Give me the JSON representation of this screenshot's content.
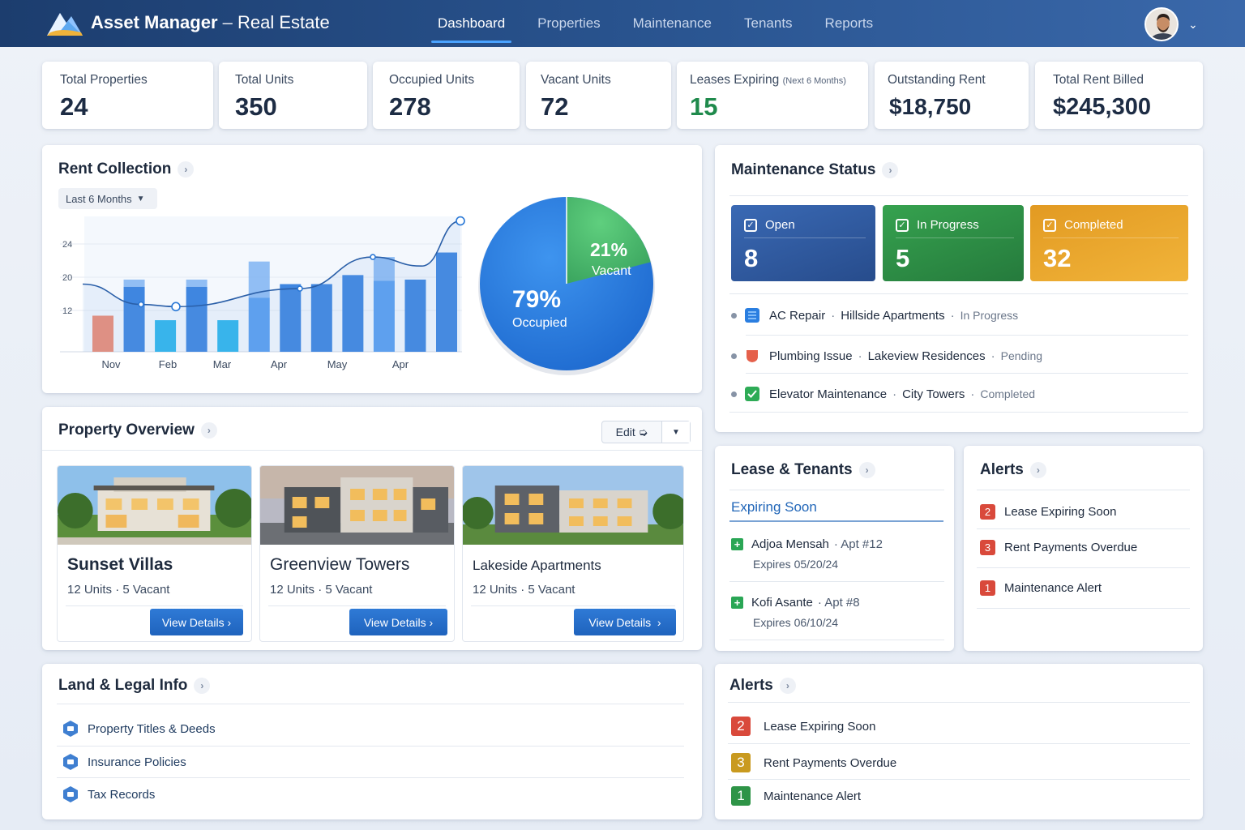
{
  "header": {
    "app_name": "Asset Manager",
    "app_separator": "–",
    "app_section": "Real Estate",
    "nav": [
      {
        "label": "Dashboard",
        "active": true
      },
      {
        "label": "Properties",
        "active": false
      },
      {
        "label": "Maintenance",
        "active": false
      },
      {
        "label": "Tenants",
        "active": false
      },
      {
        "label": "Reports",
        "active": false
      }
    ],
    "avatar_icon": "user-avatar",
    "caret_icon": "chevron-down-icon"
  },
  "stats": [
    {
      "label": "Total Properties",
      "value": "24"
    },
    {
      "label": "Total Units",
      "value": "350"
    },
    {
      "label": "Occupied Units",
      "value": "278"
    },
    {
      "label": "Vacant Units",
      "value": "72"
    },
    {
      "label": "Leases Expiring",
      "sublabel": "(Next 6 Months)",
      "value": "15",
      "color": "#1f8a4c"
    },
    {
      "label": "Outstanding Rent",
      "value": "$18,750"
    },
    {
      "label": "Total Rent Billed",
      "value": "$245,300"
    }
  ],
  "rent_collection": {
    "title": "Rent Collection",
    "period": "Last 6 Months",
    "pie": {
      "vacant_pct": "21%",
      "vacant_label": "Vacant",
      "occupied_pct": "79%",
      "occupied_label": "Occupied",
      "vacant_color": "#4cb56e",
      "occupied_color": "#2a7ee0"
    }
  },
  "chart_data": {
    "type": "bar",
    "categories": [
      "Nov",
      "Feb",
      "Mar",
      "Apr",
      "May",
      "Apr"
    ],
    "y_ticks": [
      "24",
      "20",
      "12"
    ],
    "bars": [
      8,
      16,
      7,
      16,
      7,
      20,
      15,
      15,
      17,
      21,
      16,
      22
    ],
    "bar_fill_fraction": [
      1,
      0.9,
      1,
      0.9,
      1,
      0.6,
      1,
      1,
      1,
      0.75,
      1,
      1
    ],
    "bar_colors": [
      "#ec8c77",
      "#3f86e0",
      "#2fb6ec",
      "#3f86e0",
      "#2fb6ec",
      "#5a9ff0",
      "#3f86e0",
      "#3f86e0",
      "#3f86e0",
      "#5a9ff0",
      "#3f86e0",
      "#3f86e0"
    ],
    "line": [
      15,
      10.5,
      10,
      14,
      21,
      19,
      29
    ],
    "ylim": [
      0,
      30
    ]
  },
  "maintenance": {
    "title": "Maintenance Status",
    "tiles": [
      {
        "label": "Open",
        "value": "8",
        "color": "#2f5aa0"
      },
      {
        "label": "In Progress",
        "value": "5",
        "color": "#2e9447"
      },
      {
        "label": "Completed",
        "value": "32",
        "color": "#eaa528"
      }
    ],
    "items": [
      {
        "task": "AC Repair",
        "location": "Hillside Apartments",
        "status": "In Progress",
        "icon": "ac-repair-icon"
      },
      {
        "task": "Plumbing Issue",
        "location": "Lakeview Residences",
        "status": "Pending",
        "icon": "plumbing-icon"
      },
      {
        "task": "Elevator Maintenance",
        "location": "City Towers",
        "status": "Completed",
        "icon": "check-icon"
      }
    ]
  },
  "property_overview": {
    "title": "Property Overview",
    "edit_label": "Edit",
    "properties": [
      {
        "name": "Sunset Villas",
        "units": "12 Units",
        "vacant": "5 Vacant",
        "button": "View Details"
      },
      {
        "name": "Greenview Towers",
        "units": "12 Units",
        "vacant": "5 Vacant",
        "button": "View Details"
      },
      {
        "name": "Lakeside Apartments",
        "units": "12 Units",
        "vacant": "5 Vacant",
        "button": "View Details"
      }
    ]
  },
  "lease_tenants": {
    "title": "Lease & Tenants",
    "tab": "Expiring Soon",
    "tenants": [
      {
        "name": "Adjoa Mensah",
        "apt": "Apt #12",
        "expires": "Expires 05/20/24"
      },
      {
        "name": "Kofi Asante",
        "apt": "Apt #8",
        "expires": "Expires 06/10/24"
      }
    ]
  },
  "alerts_small": {
    "title": "Alerts",
    "items": [
      {
        "count": "2",
        "label": "Lease Expiring Soon",
        "color": "#d9493b"
      },
      {
        "count": "3",
        "label": "Rent Payments Overdue",
        "color": "#d9493b"
      },
      {
        "count": "1",
        "label": "Maintenance Alert",
        "color": "#d9493b"
      }
    ]
  },
  "land_legal": {
    "title": "Land & Legal Info",
    "items": [
      {
        "label": "Property Titles & Deeds"
      },
      {
        "label": "Insurance Policies"
      },
      {
        "label": "Tax Records"
      }
    ]
  },
  "alerts_large": {
    "title": "Alerts",
    "items": [
      {
        "count": "2",
        "label": "Lease Expiring Soon",
        "color": "#d9493b"
      },
      {
        "count": "3",
        "label": "Rent Payments Overdue",
        "color": "#c99a1f"
      },
      {
        "count": "1",
        "label": "Maintenance Alert",
        "color": "#2e9447"
      }
    ]
  }
}
